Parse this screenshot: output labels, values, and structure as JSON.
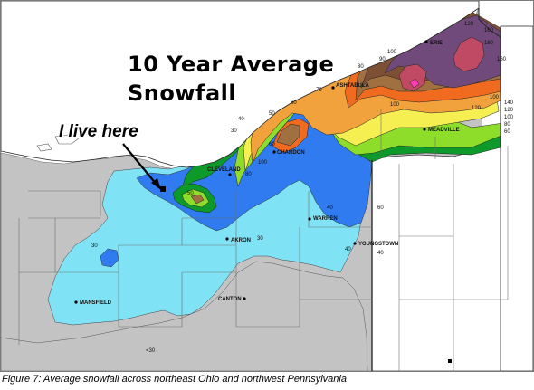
{
  "title_line1": "10 Year Average",
  "title_line2": "Snowfall",
  "annotation": "I live here",
  "caption": "Figure 7: Average snowfall across northeast Ohio and northwest Pennsylvania",
  "cities": {
    "erie": "ERIE",
    "ashtabula": "ASHTABULA",
    "meadville": "MEADVILLE",
    "chardon": "CHARDON",
    "cleveland": "CLEVELAND",
    "warren": "WARREN",
    "youngstown": "YOUNGSTOWN",
    "akron": "AKRON",
    "canton": "CANTON",
    "mansfield": "MANSFIELD"
  },
  "contour_labels": {
    "c120": "120",
    "c160a": "160",
    "c180": "180",
    "c160b": "160",
    "c140": "140",
    "c120b": "120",
    "c100b": "100",
    "c80": "80",
    "c70": "70",
    "c60": "60",
    "c50": "50",
    "c40": "40",
    "c30": "30",
    "c100": "100",
    "c90": "90",
    "c100c": "100",
    "c80b": "80",
    "c60b": "60",
    "c50b": "50",
    "c40b": "40",
    "c30b": "30",
    "c100d": "100",
    "c60c": "60",
    "c40c": "40",
    "c80c": "80",
    "c120c": "120",
    "c100e": "100",
    "c30c": "30",
    "clt30": "<30",
    "c60d": "60",
    "c40d": "40"
  },
  "colors": {
    "lake_erie": "#ffffff",
    "outside_gray": "#b8b8b8",
    "lt30": "#c3c3c3",
    "s30": "#7fe3f5",
    "s40": "#2f7bef",
    "s50": "#0e9a2a",
    "s60": "#8fdd2b",
    "s70": "#f5ef52",
    "s80": "#f2a23c",
    "s100": "#f06a1f",
    "s120": "#a07040",
    "s140": "#7d4f34",
    "s160": "#6f4a7a",
    "s180": "#c04a63",
    "peak": "#ff3db5"
  }
}
